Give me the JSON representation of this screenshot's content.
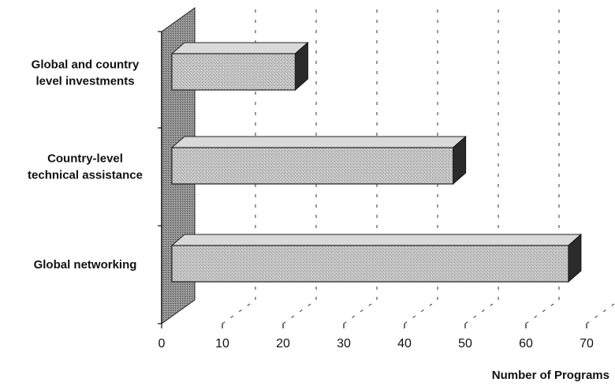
{
  "chart_data": {
    "type": "bar",
    "orientation": "horizontal",
    "style": "3d",
    "categories": [
      "Global and country level investments",
      "Country-level technical assistance",
      "Global networking"
    ],
    "category_label_lines": [
      [
        "Global and country",
        "level investments"
      ],
      [
        "Country-level",
        "technical assistance"
      ],
      [
        "Global networking"
      ]
    ],
    "values": [
      22,
      48,
      67
    ],
    "xlabel": "Number of Programs",
    "ylabel": "",
    "title": "",
    "xlim": [
      0,
      70
    ],
    "x_ticks": [
      "0",
      "10",
      "20",
      "30",
      "40",
      "50",
      "60",
      "70"
    ],
    "grid": true,
    "legend": "none"
  },
  "colors": {
    "bar_front": "#bdbdbd",
    "bar_top": "#d9d9d9",
    "bar_side": "#2b2b2b",
    "wall": "#8a8a8a"
  }
}
